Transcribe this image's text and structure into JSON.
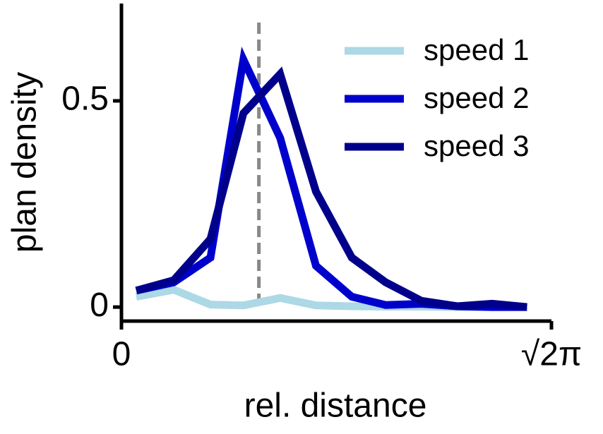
{
  "chart_data": {
    "type": "line",
    "xlabel": "rel. distance",
    "ylabel": "plan density",
    "x": [
      0.153,
      0.54,
      0.92,
      1.26,
      1.64,
      2.01,
      2.38,
      2.73,
      3.1,
      3.47,
      3.83,
      4.19
    ],
    "series": [
      {
        "name": "speed 1",
        "color": "#add8e6",
        "values": [
          0.025,
          0.042,
          0.006,
          0.004,
          0.022,
          0.004,
          0.002,
          0.001,
          0.001,
          0.0,
          0.0,
          0.0
        ]
      },
      {
        "name": "speed 2",
        "color": "#0000cd",
        "values": [
          0.04,
          0.06,
          0.12,
          0.6,
          0.41,
          0.1,
          0.025,
          0.005,
          0.008,
          0.002,
          0.0,
          0.0
        ]
      },
      {
        "name": "speed 3",
        "color": "#00008b",
        "values": [
          0.04,
          0.065,
          0.165,
          0.47,
          0.565,
          0.28,
          0.12,
          0.06,
          0.015,
          0.002,
          0.008,
          0.0
        ]
      }
    ],
    "vline": {
      "x": 1.42,
      "color": "#888888"
    },
    "xlim": [
      0,
      4.443
    ],
    "ylim": [
      -0.034,
      0.736
    ],
    "xticks": [
      0,
      {
        "value": 4.443,
        "label": "√2π"
      }
    ],
    "yticks": [
      0,
      0.5
    ],
    "legend": "upper right"
  }
}
